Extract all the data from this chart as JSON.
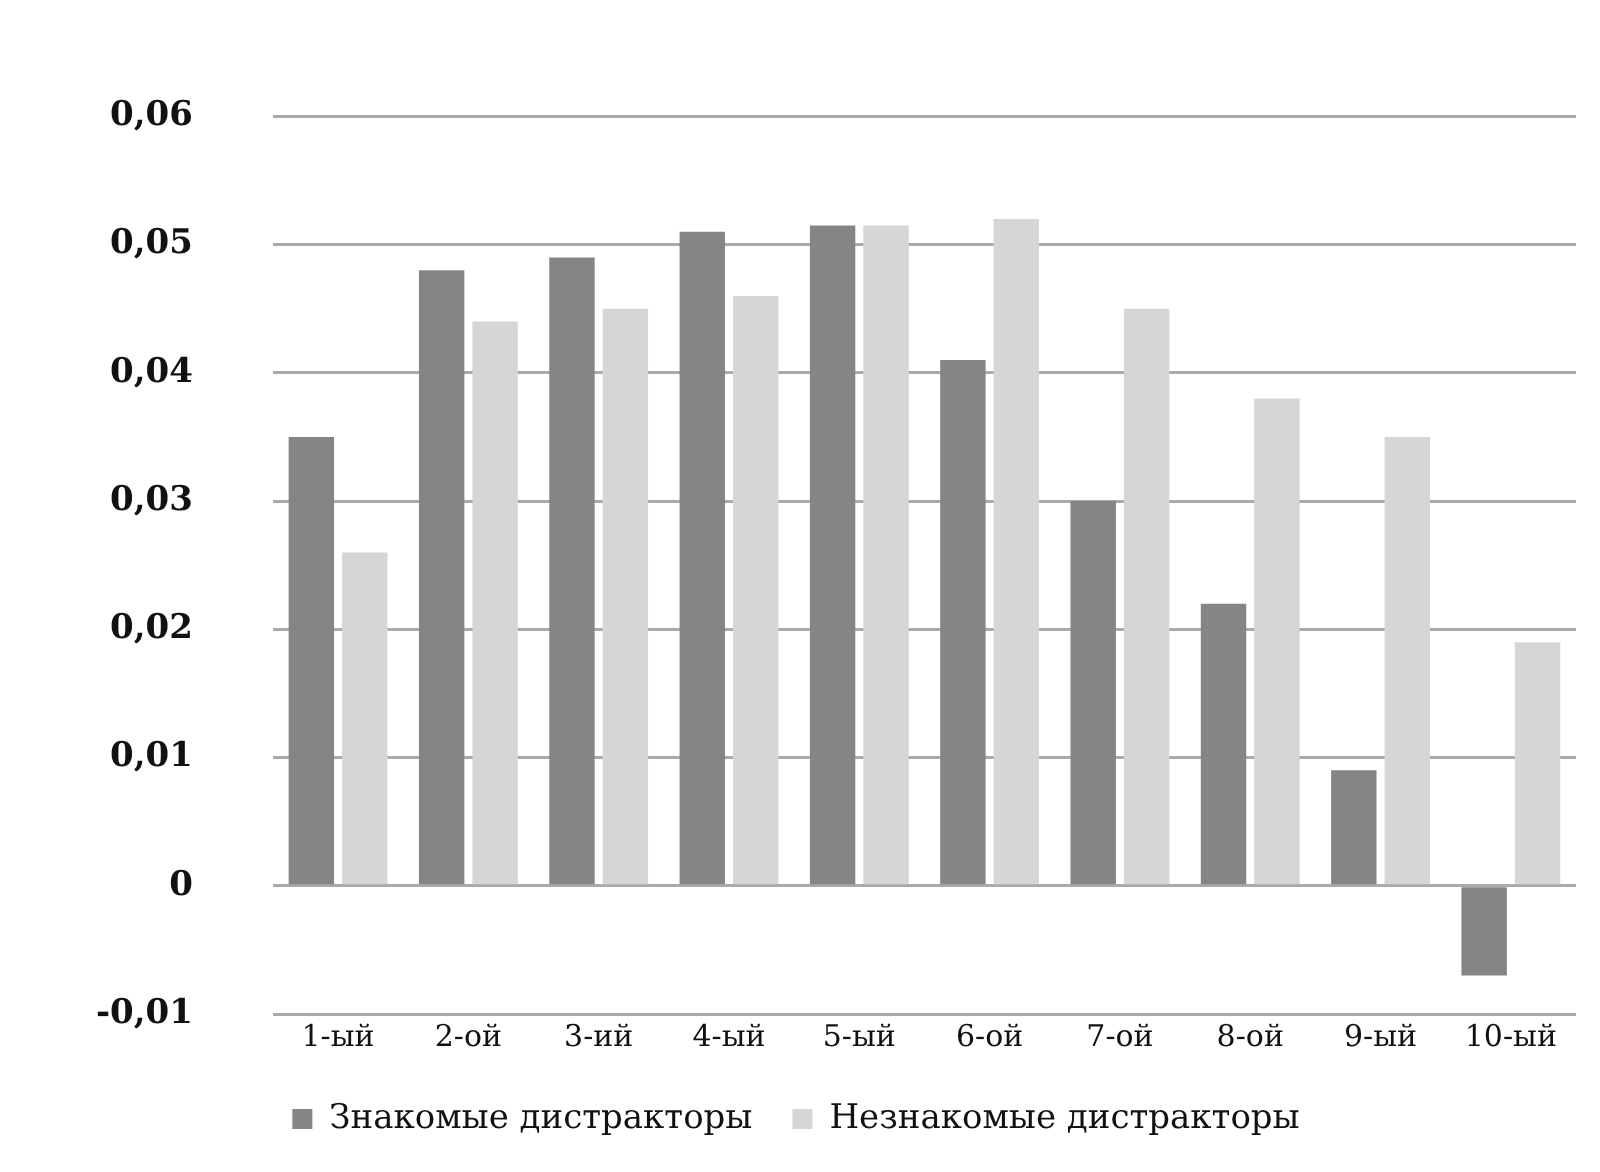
{
  "chart_data": {
    "type": "bar",
    "categories": [
      "1-ый",
      "2-ой",
      "3-ий",
      "4-ый",
      "5-ый",
      "6-ой",
      "7-ой",
      "8-ой",
      "9-ый",
      "10-ый"
    ],
    "series": [
      {
        "name": "Знакомые дистракторы",
        "color": "#858585",
        "values": [
          0.035,
          0.048,
          0.049,
          0.051,
          0.0515,
          0.041,
          0.03,
          0.022,
          0.009,
          -0.007
        ]
      },
      {
        "name": "Незнакомые дистракторы",
        "color": "#d6d6d6",
        "values": [
          0.026,
          0.044,
          0.045,
          0.046,
          0.0515,
          0.052,
          0.045,
          0.038,
          0.035,
          0.019
        ]
      }
    ],
    "ylim": [
      -0.01,
      0.06
    ],
    "yticks": [
      {
        "value": -0.01,
        "label": "-0,01"
      },
      0,
      {
        "value": 0.01,
        "label": "0,01"
      },
      {
        "value": 0.02,
        "label": "0,02"
      },
      {
        "value": 0.03,
        "label": "0,03"
      },
      {
        "value": 0.04,
        "label": "0,04"
      },
      {
        "value": 0.05,
        "label": "0,05"
      },
      {
        "value": 0.06,
        "label": "0,06"
      }
    ],
    "grid": "y",
    "legend": "bottom"
  }
}
